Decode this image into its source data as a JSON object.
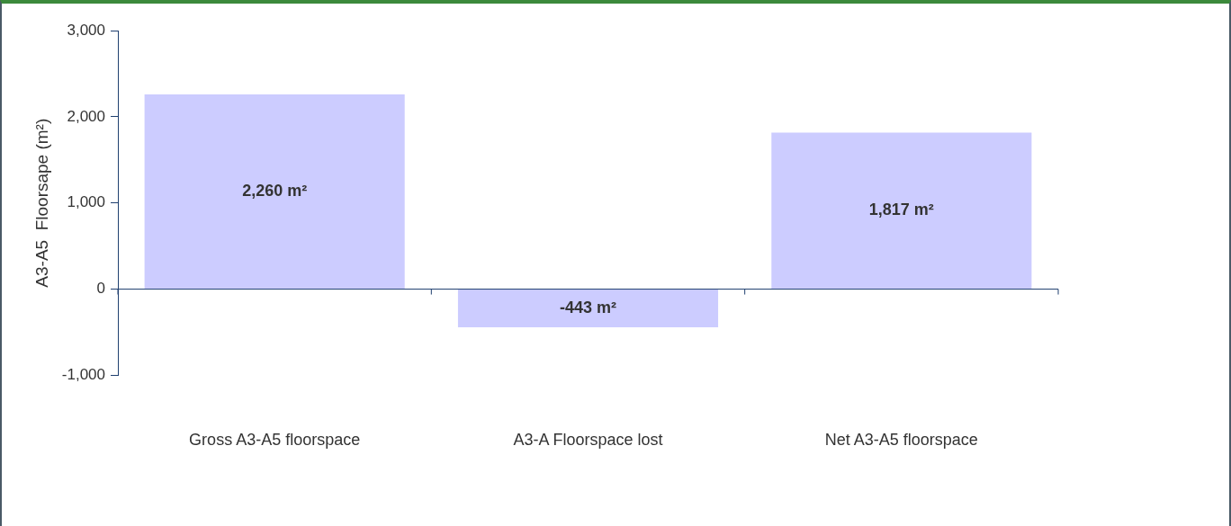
{
  "chart_data": {
    "type": "bar",
    "ylabel": "A3-A5  Floorsape (m²)",
    "categories": [
      "Gross A3-A5 floorspace",
      "A3-A Floorspace lost",
      "Net A3-A5 floorspace"
    ],
    "values": [
      2260,
      -443,
      1817
    ],
    "value_labels": [
      "2,260 m²",
      "-443 m²",
      "1,817 m²"
    ],
    "color": "#ccccff",
    "ylim": [
      -1000,
      3000
    ],
    "yticks": [
      {
        "value": -1000,
        "label": "-1,000"
      },
      0,
      {
        "value": 1000,
        "label": "1,000"
      },
      {
        "value": 2000,
        "label": "2,000"
      },
      {
        "value": 3000,
        "label": "3,000"
      }
    ],
    "ref_lines": [
      {
        "axis": "y",
        "value": 0,
        "color": "#1f3f6f"
      }
    ],
    "grid": false,
    "legend": false
  }
}
